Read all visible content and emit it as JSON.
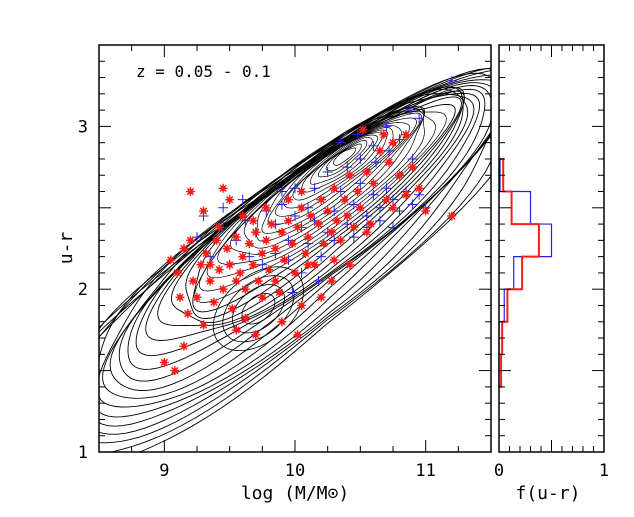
{
  "chart_data": [
    {
      "type": "scatter",
      "panel": "main",
      "annotation": "z = 0.05 - 0.1",
      "xlabel": "log (M/M⊙)",
      "ylabel": "u-r",
      "xlim": [
        8.5,
        11.5
      ],
      "ylim": [
        1.0,
        3.5
      ],
      "xticks": [
        "9",
        "10",
        "11"
      ],
      "yticks": [
        "1",
        "2",
        "3"
      ],
      "background": "density contours of the full galaxy sample",
      "contour_peak": {
        "x": 10.38,
        "y": 2.82
      },
      "contour_secondary_peak": {
        "x": 9.72,
        "y": 1.88
      },
      "series": [
        {
          "name": "blue crosses",
          "marker": "+",
          "color": "#2222ee",
          "points": [
            [
              9.25,
              2.32
            ],
            [
              9.3,
              2.45
            ],
            [
              9.45,
              2.38
            ],
            [
              9.55,
              2.3
            ],
            [
              9.62,
              2.42
            ],
            [
              9.7,
              2.35
            ],
            [
              9.78,
              2.48
            ],
            [
              9.85,
              2.4
            ],
            [
              9.9,
              2.52
            ],
            [
              9.95,
              2.3
            ],
            [
              10.0,
              2.45
            ],
            [
              10.05,
              2.38
            ],
            [
              10.1,
              2.5
            ],
            [
              10.15,
              2.42
            ],
            [
              10.2,
              2.55
            ],
            [
              10.25,
              2.35
            ],
            [
              10.3,
              2.48
            ],
            [
              10.35,
              2.6
            ],
            [
              10.4,
              2.4
            ],
            [
              10.45,
              2.52
            ],
            [
              10.5,
              2.65
            ],
            [
              10.55,
              2.45
            ],
            [
              10.6,
              2.58
            ],
            [
              10.65,
              2.5
            ],
            [
              10.7,
              2.62
            ],
            [
              10.75,
              2.55
            ],
            [
              10.8,
              2.48
            ],
            [
              10.85,
              2.6
            ],
            [
              10.9,
              2.52
            ],
            [
              10.95,
              2.58
            ],
            [
              10.35,
              2.9
            ],
            [
              10.48,
              2.95
            ],
            [
              10.6,
              2.88
            ],
            [
              10.7,
              3.0
            ],
            [
              10.8,
              2.92
            ],
            [
              10.88,
              3.1
            ],
            [
              10.95,
              3.05
            ],
            [
              11.2,
              3.28
            ],
            [
              10.2,
              2.2
            ],
            [
              10.1,
              2.28
            ],
            [
              9.95,
              2.18
            ],
            [
              9.85,
              2.22
            ],
            [
              9.75,
              2.15
            ],
            [
              10.3,
              2.3
            ],
            [
              10.45,
              2.32
            ],
            [
              10.55,
              2.38
            ],
            [
              10.65,
              2.42
            ],
            [
              10.75,
              2.38
            ],
            [
              11.0,
              2.5
            ],
            [
              10.15,
              2.62
            ],
            [
              10.25,
              2.72
            ],
            [
              10.4,
              2.75
            ],
            [
              10.5,
              2.8
            ],
            [
              10.62,
              2.78
            ],
            [
              10.72,
              2.85
            ],
            [
              10.9,
              2.8
            ],
            [
              9.9,
              2.6
            ],
            [
              10.0,
              2.62
            ],
            [
              9.6,
              2.55
            ],
            [
              9.45,
              2.5
            ],
            [
              9.35,
              2.2
            ],
            [
              9.5,
              2.15
            ],
            [
              9.65,
              2.2
            ],
            [
              10.05,
              2.1
            ],
            [
              10.18,
              2.05
            ],
            [
              9.98,
              1.98
            ]
          ]
        },
        {
          "name": "red stars",
          "marker": "*",
          "color": "#ff1a1a",
          "points": [
            [
              9.05,
              2.18
            ],
            [
              9.1,
              2.1
            ],
            [
              9.12,
              1.95
            ],
            [
              9.15,
              2.25
            ],
            [
              9.18,
              1.85
            ],
            [
              9.2,
              2.3
            ],
            [
              9.22,
              2.05
            ],
            [
              9.25,
              1.95
            ],
            [
              9.28,
              2.15
            ],
            [
              9.3,
              1.78
            ],
            [
              9.32,
              2.22
            ],
            [
              9.35,
              2.05
            ],
            [
              9.38,
              1.92
            ],
            [
              9.4,
              2.3
            ],
            [
              9.42,
              2.12
            ],
            [
              9.45,
              2.0
            ],
            [
              9.48,
              2.25
            ],
            [
              9.5,
              2.15
            ],
            [
              9.52,
              1.88
            ],
            [
              9.55,
              2.32
            ],
            [
              9.58,
              2.1
            ],
            [
              9.6,
              2.2
            ],
            [
              9.62,
              2.0
            ],
            [
              9.65,
              2.28
            ],
            [
              9.68,
              2.15
            ],
            [
              9.7,
              2.35
            ],
            [
              9.72,
              2.05
            ],
            [
              9.75,
              2.22
            ],
            [
              9.78,
              2.3
            ],
            [
              9.8,
              2.12
            ],
            [
              9.82,
              2.4
            ],
            [
              9.85,
              2.25
            ],
            [
              9.88,
              1.98
            ],
            [
              9.9,
              2.35
            ],
            [
              9.92,
              2.18
            ],
            [
              9.95,
              2.42
            ],
            [
              9.98,
              2.28
            ],
            [
              10.0,
              2.1
            ],
            [
              10.02,
              2.38
            ],
            [
              10.05,
              2.5
            ],
            [
              10.08,
              2.22
            ],
            [
              10.1,
              2.32
            ],
            [
              10.12,
              2.45
            ],
            [
              10.15,
              2.15
            ],
            [
              10.18,
              2.4
            ],
            [
              10.2,
              2.55
            ],
            [
              10.22,
              2.28
            ],
            [
              10.25,
              2.48
            ],
            [
              10.28,
              2.35
            ],
            [
              10.3,
              2.62
            ],
            [
              10.32,
              2.42
            ],
            [
              10.35,
              2.3
            ],
            [
              10.38,
              2.55
            ],
            [
              10.4,
              2.45
            ],
            [
              10.42,
              2.7
            ],
            [
              10.45,
              2.38
            ],
            [
              10.48,
              2.6
            ],
            [
              10.5,
              2.5
            ],
            [
              10.55,
              2.72
            ],
            [
              10.58,
              2.4
            ],
            [
              10.6,
              2.65
            ],
            [
              10.65,
              2.85
            ],
            [
              10.7,
              2.55
            ],
            [
              10.72,
              2.78
            ],
            [
              10.75,
              2.9
            ],
            [
              10.8,
              2.7
            ],
            [
              10.85,
              2.95
            ],
            [
              10.9,
              2.75
            ],
            [
              10.95,
              2.62
            ],
            [
              11.0,
              2.48
            ],
            [
              11.2,
              2.45
            ],
            [
              9.6,
              2.45
            ],
            [
              9.5,
              2.55
            ],
            [
              9.45,
              2.62
            ],
            [
              9.3,
              2.48
            ],
            [
              9.2,
              2.6
            ],
            [
              9.55,
              1.75
            ],
            [
              9.62,
              1.82
            ],
            [
              9.75,
              1.95
            ],
            [
              9.7,
              1.72
            ],
            [
              9.9,
              1.8
            ],
            [
              10.02,
              1.72
            ],
            [
              10.05,
              1.9
            ],
            [
              10.2,
              1.95
            ],
            [
              10.28,
              2.05
            ],
            [
              10.3,
              2.18
            ],
            [
              10.42,
              2.15
            ],
            [
              9.0,
              1.55
            ],
            [
              9.08,
              1.5
            ],
            [
              9.15,
              1.65
            ],
            [
              10.55,
              2.35
            ],
            [
              10.68,
              2.95
            ],
            [
              10.52,
              2.98
            ],
            [
              10.75,
              2.5
            ],
            [
              10.85,
              2.58
            ],
            [
              9.68,
              2.42
            ],
            [
              9.78,
              2.5
            ],
            [
              9.95,
              2.55
            ],
            [
              10.05,
              2.6
            ],
            [
              10.1,
              2.15
            ],
            [
              9.85,
              2.05
            ],
            [
              9.55,
              2.05
            ],
            [
              9.42,
              2.38
            ],
            [
              9.35,
              2.15
            ]
          ]
        }
      ]
    },
    {
      "type": "histogram",
      "panel": "side",
      "orientation": "horizontal",
      "xlabel": "f(u-r)",
      "xlim": [
        0,
        1
      ],
      "ylim": [
        1.0,
        3.5
      ],
      "xticks": [
        "0",
        "1"
      ],
      "bin_edges": [
        1.4,
        1.6,
        1.8,
        2.0,
        2.2,
        2.4,
        2.6,
        2.8
      ],
      "series": [
        {
          "name": "red stars",
          "color": "#ff1a1a",
          "values": [
            0.02,
            0.03,
            0.08,
            0.22,
            0.38,
            0.12,
            0.04
          ]
        },
        {
          "name": "blue crosses",
          "color": "#2222ee",
          "values": [
            0.0,
            0.0,
            0.05,
            0.14,
            0.5,
            0.3,
            0.01
          ]
        }
      ]
    }
  ]
}
